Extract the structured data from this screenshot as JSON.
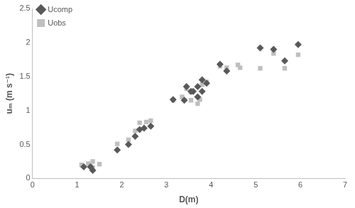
{
  "chart_data": {
    "type": "scatter",
    "x_label": "D(m)",
    "y_label": "uₘ (m s⁻¹)",
    "xlim": [
      0,
      7
    ],
    "xticks": [
      0,
      1,
      2,
      3,
      4,
      5,
      6,
      7
    ],
    "ylim": [
      0,
      2.5
    ],
    "yticks": [
      0,
      0.5,
      1,
      1.5,
      2,
      2.5
    ],
    "grid": false,
    "legend": "upper left",
    "series": [
      {
        "name": "Ucomp",
        "color": "#595959",
        "marker": "diamond",
        "x": [
          1.15,
          1.3,
          1.35,
          1.9,
          2.15,
          2.3,
          2.4,
          2.5,
          2.65,
          3.15,
          3.4,
          3.45,
          3.55,
          3.6,
          3.7,
          3.7,
          3.8,
          3.8,
          3.9,
          4.2,
          4.35,
          5.1,
          5.4,
          5.65,
          5.95
        ],
        "values": [
          0.17,
          0.17,
          0.12,
          0.42,
          0.5,
          0.62,
          0.72,
          0.74,
          0.77,
          1.16,
          1.15,
          1.35,
          1.28,
          1.28,
          1.2,
          1.35,
          1.28,
          1.45,
          1.4,
          1.68,
          1.58,
          1.92,
          1.9,
          1.73,
          1.97
        ]
      },
      {
        "name": "Uobs",
        "color": "#bfbfbf",
        "marker": "square",
        "x": [
          1.1,
          1.25,
          1.3,
          1.35,
          1.35,
          1.5,
          1.9,
          2.15,
          2.3,
          2.4,
          2.55,
          2.65,
          3.15,
          3.35,
          3.45,
          3.55,
          3.55,
          3.7,
          3.75,
          3.8,
          3.9,
          4.2,
          4.35,
          4.6,
          4.65,
          5.1,
          5.4,
          5.65,
          5.95
        ],
        "values": [
          0.2,
          0.22,
          0.18,
          0.25,
          0.16,
          0.21,
          0.51,
          0.57,
          0.7,
          0.82,
          0.83,
          0.85,
          1.15,
          1.2,
          1.32,
          1.27,
          1.15,
          1.1,
          1.16,
          1.38,
          1.42,
          1.65,
          1.63,
          1.67,
          1.63,
          1.62,
          1.84,
          1.62,
          1.82
        ]
      }
    ]
  }
}
